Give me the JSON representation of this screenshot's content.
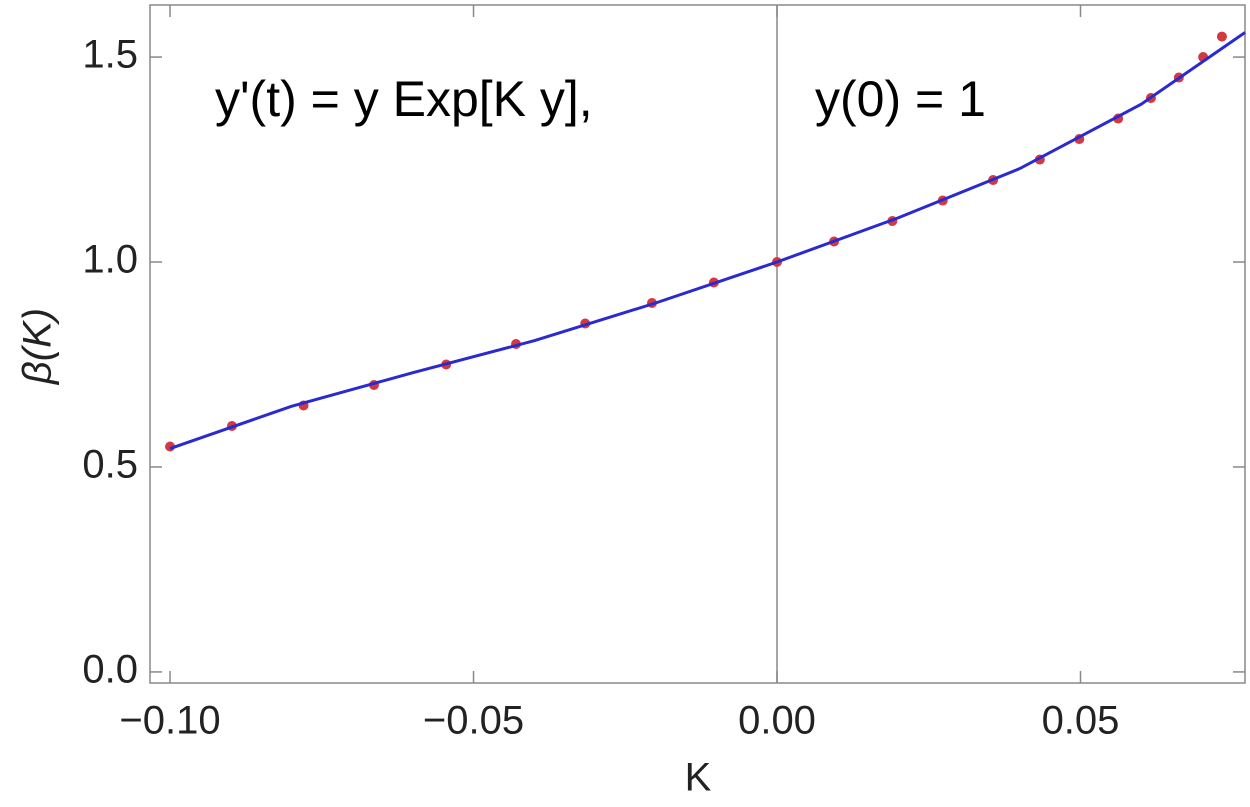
{
  "chart_data": {
    "type": "line",
    "xlabel": "K",
    "ylabel": "β(K)",
    "annotations": [
      "y'(t) = y Exp[K y],",
      "y(0) = 1"
    ],
    "xlim": [
      -0.1033,
      0.0771
    ],
    "ylim": [
      -0.027,
      1.627
    ],
    "xticks": [
      {
        "value": -0.1,
        "label": "−0.10"
      },
      {
        "value": -0.05,
        "label": "−0.05"
      },
      {
        "value": 0,
        "label": "0.00"
      },
      {
        "value": 0.05,
        "label": "0.05"
      }
    ],
    "yticks": [
      {
        "value": 0,
        "label": "0.0"
      },
      {
        "value": 0.5,
        "label": "0.5"
      },
      {
        "value": 1,
        "label": "1.0"
      },
      {
        "value": 1.5,
        "label": "1.5"
      }
    ],
    "series": [
      {
        "type": "scatter",
        "color": "#d23a3f",
        "x": [
          -0.1,
          -0.0898,
          -0.078,
          -0.0664,
          -0.0545,
          -0.043,
          -0.0316,
          -0.0206,
          -0.0104,
          0,
          0.0094,
          0.019,
          0.0273,
          0.0356,
          0.0433,
          0.0498,
          0.0562,
          0.0616,
          0.0662,
          0.0702,
          0.0733
        ],
        "values": [
          0.55,
          0.6,
          0.65,
          0.7,
          0.75,
          0.8,
          0.85,
          0.9,
          0.95,
          1.0,
          1.05,
          1.1,
          1.15,
          1.2,
          1.25,
          1.3,
          1.35,
          1.4,
          1.45,
          1.5,
          1.55
        ]
      },
      {
        "type": "line",
        "color": "#2a2ad0",
        "x": [
          -0.1,
          -0.08,
          -0.06,
          -0.04,
          -0.02,
          0,
          0.02,
          0.04,
          0.06,
          0.0771
        ],
        "values": [
          0.545,
          0.648,
          0.73,
          0.808,
          0.9,
          1.0,
          1.108,
          1.228,
          1.385,
          1.56
        ]
      }
    ]
  }
}
